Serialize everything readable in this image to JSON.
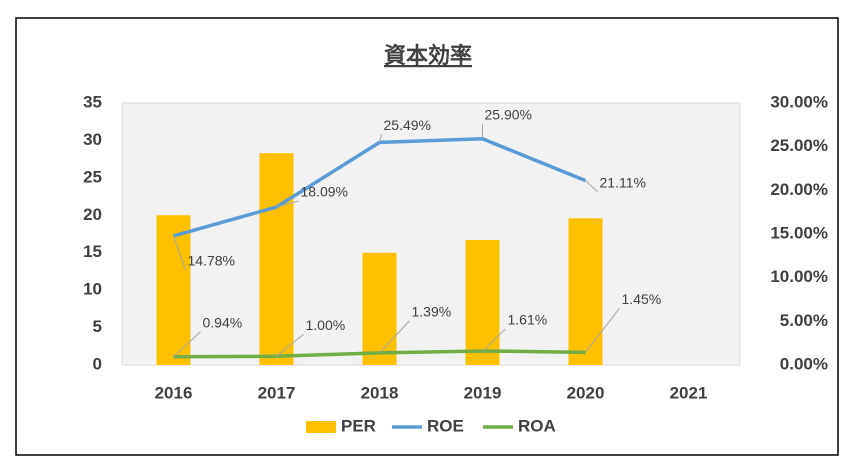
{
  "chart_data": {
    "type": "combo",
    "title": "資本効率",
    "categories": [
      "2016",
      "2017",
      "2018",
      "2019",
      "2020",
      "2021"
    ],
    "series": [
      {
        "name": "PER",
        "type": "bar",
        "color": "#ffc000",
        "values": [
          20,
          28.3,
          15,
          16.7,
          19.6,
          null
        ]
      },
      {
        "name": "ROE",
        "type": "line",
        "axis": "y2",
        "color": "#5b9bd5",
        "values": [
          14.78,
          18.09,
          25.49,
          25.9,
          21.11,
          null
        ],
        "value_labels": [
          "14.78%",
          "18.09%",
          "25.49%",
          "25.90%",
          "21.11%",
          null
        ]
      },
      {
        "name": "ROA",
        "type": "line",
        "axis": "y2",
        "color": "#70ad47",
        "values": [
          0.94,
          1.0,
          1.39,
          1.61,
          1.45,
          null
        ],
        "value_labels": [
          "0.94%",
          "1.00%",
          "1.39%",
          "1.61%",
          "1.45%",
          null
        ]
      }
    ],
    "ylim": [
      0,
      35
    ],
    "yticks": [
      0,
      5,
      10,
      15,
      20,
      25,
      30,
      35
    ],
    "y2lim": [
      0,
      30
    ],
    "y2ticks": [
      {
        "value": 0,
        "label": "0.00%"
      },
      {
        "value": 5,
        "label": "5.00%"
      },
      {
        "value": 10,
        "label": "10.00%"
      },
      {
        "value": 15,
        "label": "15.00%"
      },
      {
        "value": 20,
        "label": "20.00%"
      },
      {
        "value": 25,
        "label": "25.00%"
      },
      {
        "value": 30,
        "label": "30.00%"
      }
    ],
    "legend": "bottom"
  }
}
